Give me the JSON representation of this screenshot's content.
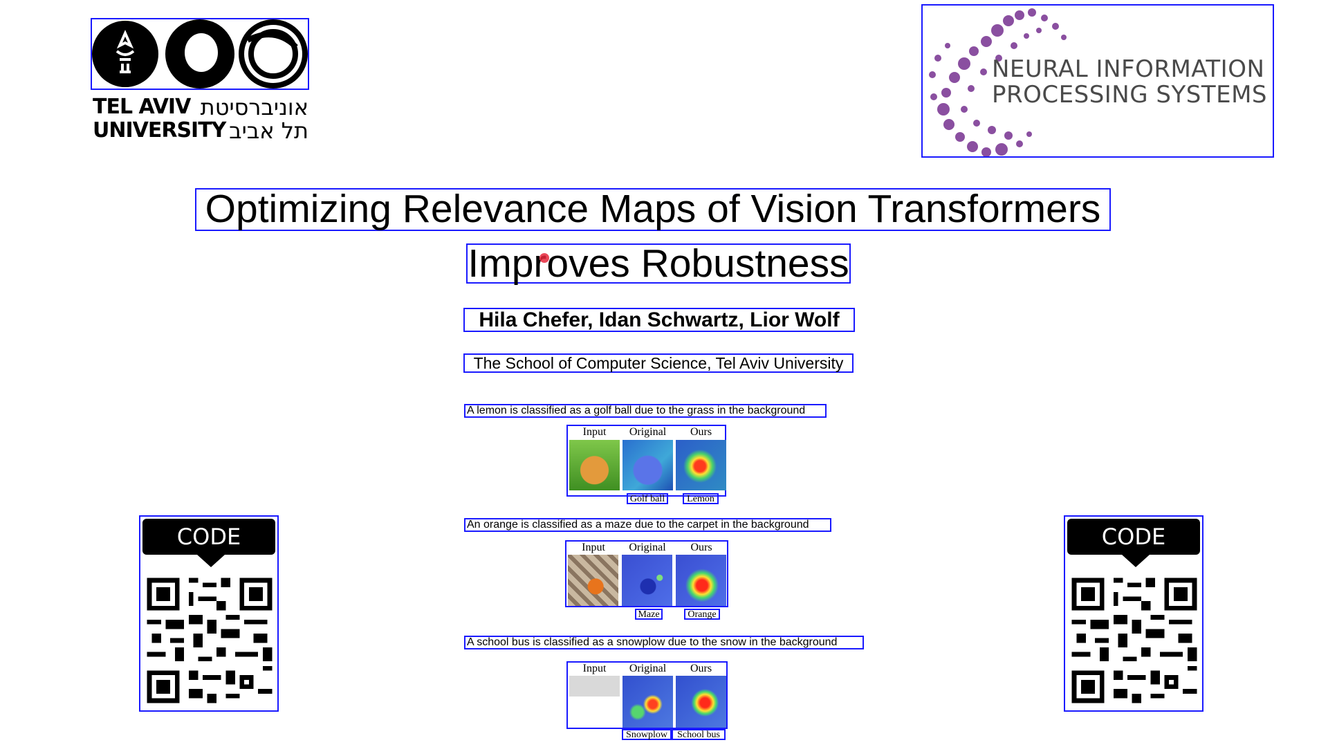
{
  "logos": {
    "tau": {
      "en_line1": "TEL AVIV",
      "en_line2": "UNIVERSITY",
      "he_line1": "אוניברסיטת",
      "he_line2": "תל אביב"
    },
    "neurips": {
      "line1": "NEURAL INFORMATION",
      "line2": "PROCESSING SYSTEMS"
    }
  },
  "title": {
    "line1": "Optimizing Relevance Maps of Vision Transformers",
    "line2": "Improves Robustness"
  },
  "authors": "Hila Chefer, Idan Schwartz, Lior Wolf",
  "affiliation": "The School of Computer Science, Tel Aviv University",
  "grid_headers": {
    "input": "Input",
    "original": "Original",
    "ours": "Ours"
  },
  "examples": [
    {
      "caption": "A lemon is classified as a golf ball due to the grass in the background",
      "pred_original": "Golf ball",
      "pred_ours": "Lemon"
    },
    {
      "caption": "An orange is classified as a maze due to the carpet in the background",
      "pred_original": "Maze",
      "pred_ours": "Orange"
    },
    {
      "caption": "A school bus is classified as a snowplow due to the snow in the background",
      "pred_original": "Snowplow",
      "pred_ours": "School bus"
    }
  ],
  "qr": {
    "left_label": "CODE",
    "right_label": "CODE"
  },
  "colors": {
    "annotation_box": "#1a1aff",
    "neurips_purple": "#8a4fa0"
  }
}
